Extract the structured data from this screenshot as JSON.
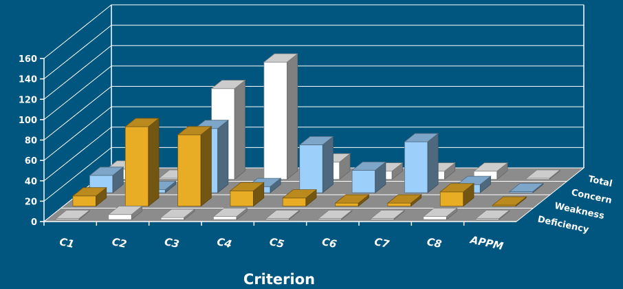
{
  "chart_data": {
    "type": "bar",
    "title": "",
    "xlabel": "Criterion",
    "ylabel": "",
    "ylim": [
      0,
      160
    ],
    "y_ticks": [
      "0",
      "20",
      "40",
      "60",
      "80",
      "100",
      "120",
      "140",
      "160"
    ],
    "categories": [
      "C1",
      "C2",
      "C3",
      "C4",
      "C5",
      "C6",
      "C7",
      "C8",
      "APPM"
    ],
    "series": [
      {
        "name": "Deficiency",
        "values": [
          0,
          5,
          2,
          3,
          0,
          0,
          0,
          3,
          0
        ]
      },
      {
        "name": "Weakness",
        "values": [
          10,
          78,
          70,
          15,
          8,
          3,
          3,
          14,
          0
        ]
      },
      {
        "name": "Concern",
        "values": [
          17,
          3,
          63,
          6,
          47,
          22,
          50,
          8,
          0
        ]
      },
      {
        "name": "Total",
        "values": [
          10,
          1,
          89,
          115,
          17,
          8,
          8,
          8,
          0
        ]
      }
    ],
    "colors": {
      "Deficiency": "#ffffff",
      "Weakness": "#e8ac25",
      "Concern": "#9ccffa",
      "Total": "#ffffff",
      "floor": "#8c8c8c",
      "background": "#00567e",
      "grid": "#ffffff"
    },
    "grid": true,
    "view": "3d-depth"
  }
}
